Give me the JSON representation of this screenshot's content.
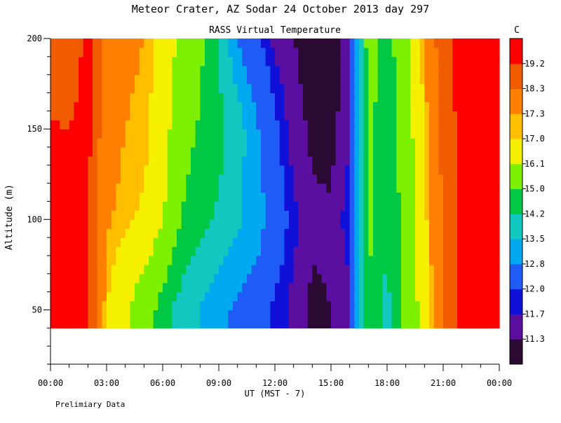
{
  "chart_data": {
    "type": "heatmap",
    "title": "Meteor Crater, AZ  Sodar  24 October 2013  day 297",
    "subtitle": "RASS Virtual Temperature",
    "xlabel": "UT  (MST - 7)",
    "ylabel": "Altitude (m)",
    "note": "Prelimiary Data",
    "colorbar_unit": "C",
    "x_ticks": [
      "00:00",
      "03:00",
      "06:00",
      "09:00",
      "12:00",
      "15:00",
      "18:00",
      "21:00",
      "00:00"
    ],
    "x_range_hours": [
      0,
      24
    ],
    "y_ticks": [
      50,
      100,
      150,
      200
    ],
    "ylim": [
      20,
      200
    ],
    "colorbar_levels": [
      11.3,
      11.7,
      12.0,
      12.8,
      13.5,
      14.2,
      15.0,
      16.1,
      17.0,
      17.3,
      18.3,
      19.2
    ],
    "colorbar_colors": [
      "#2a0a32",
      "#5a0fa0",
      "#1010d8",
      "#1f5cf5",
      "#00a8f0",
      "#10c8c0",
      "#00c844",
      "#7cf000",
      "#f4f000",
      "#ffbe00",
      "#ff8000",
      "#f25c00",
      "#ff0000"
    ],
    "data_floor_m": 40,
    "hours": [
      0,
      1,
      2,
      3,
      4,
      5,
      6,
      7,
      8,
      9,
      10,
      11,
      12,
      13,
      14,
      15,
      16,
      17,
      18,
      19,
      20,
      21,
      22,
      23,
      24
    ],
    "altitudes_m": [
      50,
      100,
      150,
      200
    ],
    "temperature_c": [
      [
        19.6,
        19.5,
        19.3,
        18.2
      ],
      [
        19.5,
        19.4,
        19.2,
        18.6
      ],
      [
        19.2,
        19.3,
        19.5,
        19.5
      ],
      [
        17.0,
        17.4,
        17.6,
        17.8
      ],
      [
        16.2,
        17.1,
        17.3,
        17.4
      ],
      [
        15.5,
        16.9,
        17.2,
        17.3
      ],
      [
        14.6,
        16.2,
        16.5,
        16.8
      ],
      [
        13.8,
        15.0,
        15.4,
        15.8
      ],
      [
        13.5,
        14.4,
        14.9,
        15.2
      ],
      [
        13.0,
        14.1,
        14.4,
        14.2
      ],
      [
        12.6,
        13.6,
        13.9,
        12.8
      ],
      [
        12.3,
        13.2,
        12.9,
        12.1
      ],
      [
        11.9,
        12.4,
        12.1,
        11.6
      ],
      [
        11.6,
        11.8,
        11.5,
        11.3
      ],
      [
        11.2,
        11.4,
        11.2,
        11.1
      ],
      [
        11.3,
        11.4,
        11.1,
        11.0
      ],
      [
        11.6,
        11.9,
        11.7,
        11.6
      ],
      [
        15.0,
        15.2,
        15.3,
        15.5
      ],
      [
        14.0,
        14.2,
        14.3,
        14.6
      ],
      [
        15.2,
        15.4,
        15.6,
        15.8
      ],
      [
        16.6,
        16.8,
        17.0,
        17.4
      ],
      [
        18.2,
        18.4,
        18.6,
        18.9
      ],
      [
        19.4,
        19.5,
        19.5,
        19.6
      ],
      [
        19.5,
        19.6,
        19.6,
        19.7
      ],
      [
        19.6,
        19.6,
        19.7,
        19.8
      ]
    ]
  }
}
